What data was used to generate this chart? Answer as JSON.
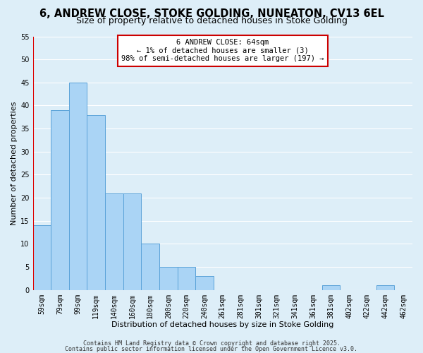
{
  "title": "6, ANDREW CLOSE, STOKE GOLDING, NUNEATON, CV13 6EL",
  "subtitle": "Size of property relative to detached houses in Stoke Golding",
  "xlabel": "Distribution of detached houses by size in Stoke Golding",
  "ylabel": "Number of detached properties",
  "bin_labels": [
    "59sqm",
    "79sqm",
    "99sqm",
    "119sqm",
    "140sqm",
    "160sqm",
    "180sqm",
    "200sqm",
    "220sqm",
    "240sqm",
    "261sqm",
    "281sqm",
    "301sqm",
    "321sqm",
    "341sqm",
    "361sqm",
    "381sqm",
    "402sqm",
    "422sqm",
    "442sqm",
    "462sqm"
  ],
  "bar_values": [
    14,
    39,
    45,
    38,
    21,
    21,
    10,
    5,
    5,
    3,
    0,
    0,
    0,
    0,
    0,
    0,
    1,
    0,
    0,
    1,
    0
  ],
  "bar_color": "#aad4f5",
  "bar_edge_color": "#5ba3d9",
  "highlight_color": "#dd0000",
  "ylim": [
    0,
    55
  ],
  "yticks": [
    0,
    5,
    10,
    15,
    20,
    25,
    30,
    35,
    40,
    45,
    50,
    55
  ],
  "annotation_title": "6 ANDREW CLOSE: 64sqm",
  "annotation_line1": "← 1% of detached houses are smaller (3)",
  "annotation_line2": "98% of semi-detached houses are larger (197) →",
  "annotation_box_color": "#ffffff",
  "annotation_box_edge": "#cc0000",
  "footnote1": "Contains HM Land Registry data © Crown copyright and database right 2025.",
  "footnote2": "Contains public sector information licensed under the Open Government Licence v3.0.",
  "bg_color": "#ddeef8",
  "plot_bg_color": "#ddeef8",
  "grid_color": "#ffffff",
  "title_fontsize": 10.5,
  "subtitle_fontsize": 9,
  "axis_label_fontsize": 8,
  "tick_fontsize": 7
}
